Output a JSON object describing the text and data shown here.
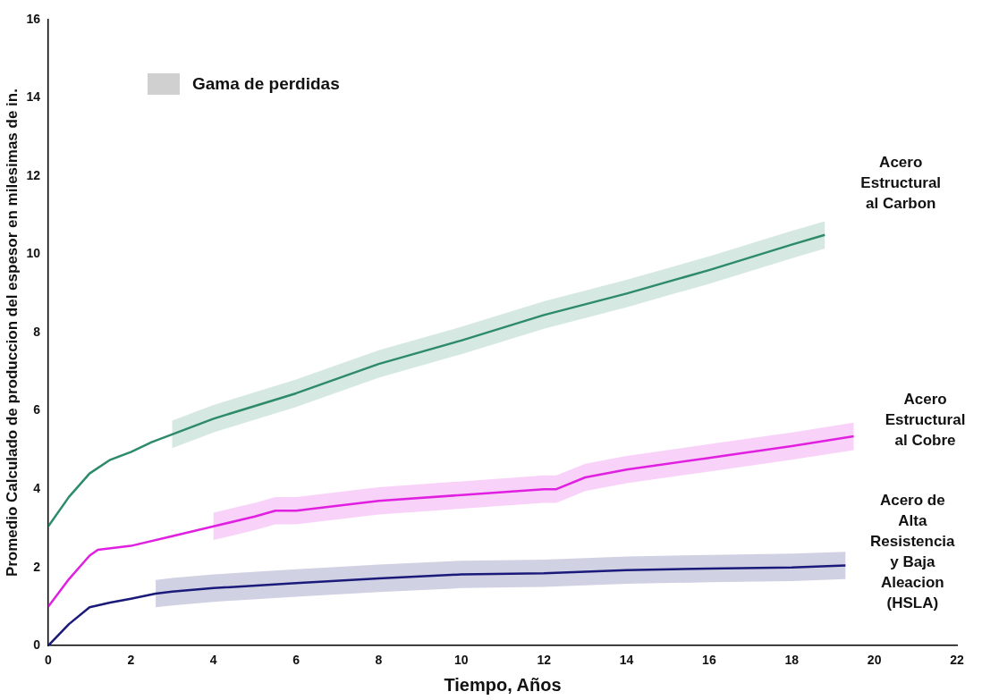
{
  "chart_data": {
    "type": "line",
    "xlabel": "Tiempo, Años",
    "ylabel": "Promedio Calculado de produccion del espesor en milesimas de in.",
    "annotations": [
      "Gama de perdidas"
    ],
    "grid": false,
    "marker": "none",
    "line_style": "solid",
    "xlim": [
      0,
      22
    ],
    "xticks": [
      0,
      2,
      4,
      6,
      8,
      10,
      12,
      14,
      16,
      18,
      20,
      22
    ],
    "ylim": [
      0,
      16
    ],
    "yticks": [
      0,
      2,
      4,
      6,
      8,
      10,
      12,
      14,
      16
    ],
    "series": [
      {
        "name": "Acero Estructural al Carbon",
        "color": "#2e8b6a",
        "x": [
          0,
          0.5,
          1,
          1.5,
          2,
          2.5,
          3,
          4,
          6,
          8,
          10,
          12,
          14,
          16,
          18,
          18.8
        ],
        "values": [
          3.05,
          3.8,
          4.4,
          4.75,
          4.95,
          5.2,
          5.4,
          5.8,
          6.45,
          7.2,
          7.8,
          8.45,
          9.0,
          9.6,
          10.25,
          10.5
        ],
        "lower": [
          null,
          null,
          null,
          null,
          null,
          null,
          5.05,
          5.45,
          6.1,
          6.85,
          7.45,
          8.1,
          8.65,
          9.25,
          9.9,
          10.15
        ],
        "upper": [
          null,
          null,
          null,
          null,
          null,
          null,
          5.75,
          6.15,
          6.8,
          7.55,
          8.15,
          8.8,
          9.35,
          9.95,
          10.6,
          10.85
        ]
      },
      {
        "name": "Acero Estructural al Cobre",
        "color": "#e020e0",
        "x": [
          0,
          0.5,
          1,
          1.2,
          2,
          3,
          4,
          5,
          5.5,
          6,
          8,
          10,
          12,
          12.3,
          13,
          14,
          16,
          18,
          19.5
        ],
        "values": [
          1.0,
          1.7,
          2.3,
          2.45,
          2.55,
          2.8,
          3.05,
          3.3,
          3.45,
          3.45,
          3.7,
          3.85,
          4.0,
          4.0,
          4.3,
          4.5,
          4.8,
          5.1,
          5.35
        ],
        "lower": [
          null,
          null,
          null,
          null,
          null,
          null,
          2.7,
          2.95,
          3.1,
          3.1,
          3.35,
          3.5,
          3.65,
          3.65,
          3.95,
          4.15,
          4.45,
          4.75,
          5.0
        ],
        "upper": [
          null,
          null,
          null,
          null,
          null,
          null,
          3.4,
          3.65,
          3.8,
          3.8,
          4.05,
          4.2,
          4.35,
          4.35,
          4.65,
          4.85,
          5.15,
          5.45,
          5.7
        ]
      },
      {
        "name": "Acero de Alta Resistencia y Baja Aleacion (HSLA)",
        "color": "#1a1a7a",
        "x": [
          0,
          0.5,
          1,
          1.5,
          2,
          2.6,
          3,
          4,
          6,
          8,
          10,
          12,
          14,
          16,
          18,
          19.3
        ],
        "values": [
          0,
          0.55,
          0.98,
          1.1,
          1.2,
          1.33,
          1.38,
          1.47,
          1.6,
          1.72,
          1.82,
          1.85,
          1.93,
          1.97,
          2.0,
          2.05
        ],
        "lower": [
          null,
          null,
          null,
          null,
          null,
          0.98,
          1.03,
          1.12,
          1.25,
          1.37,
          1.47,
          1.5,
          1.58,
          1.62,
          1.65,
          1.7
        ],
        "upper": [
          null,
          null,
          null,
          null,
          null,
          1.68,
          1.73,
          1.82,
          1.95,
          2.07,
          2.17,
          2.2,
          2.28,
          2.32,
          2.35,
          2.4
        ]
      }
    ]
  }
}
